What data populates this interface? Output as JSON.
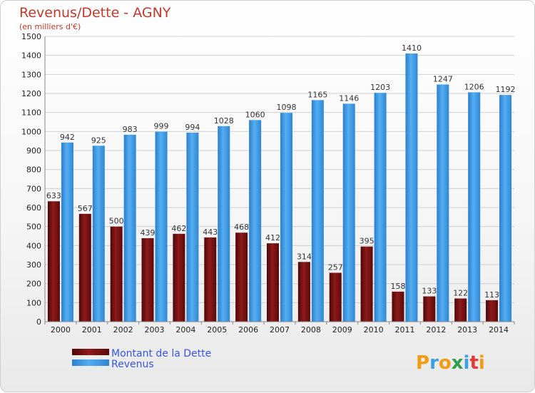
{
  "chart_data": {
    "type": "bar",
    "title": "Revenus/Dette - AGNY",
    "subtitle": "(en milliers d'€)",
    "categories": [
      "2000",
      "2001",
      "2002",
      "2003",
      "2004",
      "2005",
      "2006",
      "2007",
      "2008",
      "2009",
      "2010",
      "2011",
      "2012",
      "2013",
      "2014"
    ],
    "series": [
      {
        "name": "Montant de la Dette",
        "color": "#7a1414",
        "values": [
          633,
          567,
          500,
          439,
          462,
          443,
          468,
          412,
          314,
          257,
          395,
          158,
          133,
          122,
          113
        ]
      },
      {
        "name": "Revenus",
        "color": "#3d9be8",
        "values": [
          942,
          925,
          983,
          999,
          994,
          1028,
          1060,
          1098,
          1165,
          1146,
          1203,
          1410,
          1247,
          1206,
          1192
        ]
      }
    ],
    "ylim": [
      0,
      1500
    ],
    "yticks": [
      0,
      100,
      200,
      300,
      400,
      500,
      600,
      700,
      800,
      900,
      1000,
      1100,
      1200,
      1300,
      1400,
      1500
    ],
    "grid": true,
    "legend": "bottom-left"
  },
  "logo": {
    "text": "Proxiti"
  }
}
